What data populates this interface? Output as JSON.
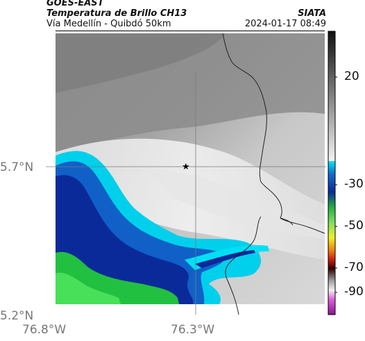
{
  "header": {
    "source": "GOES-EAST",
    "product": "Temperatura de Brillo CH13",
    "region": "Vía Medellín - Quibdó 50km",
    "agency": "SIATA",
    "timestamp": "2024-01-17 08:49"
  },
  "map": {
    "lat_ticks": [
      "5.7°N",
      "5.2°N"
    ],
    "lon_ticks": [
      "76.8°W",
      "76.3°W"
    ],
    "marker": "star",
    "colors": {
      "cold_cloud": "#0b2a9a",
      "cyan": "#00d8f0",
      "green": "#22c040",
      "warm_gray": "#9a9a9a",
      "border_line": "#222222"
    }
  },
  "colorbar": {
    "ticks": [
      "20",
      "-30",
      "-50",
      "-70",
      "-90"
    ],
    "unit_scale": "brightness temperature"
  }
}
